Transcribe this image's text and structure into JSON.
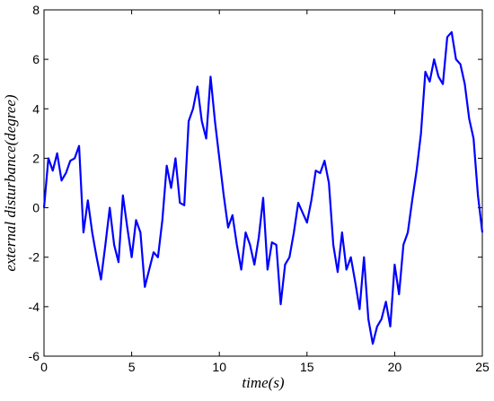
{
  "chart_data": {
    "type": "line",
    "xlabel": "time(s)",
    "ylabel": "external disturbance(degree)",
    "x": [
      0,
      0.25,
      0.5,
      0.75,
      1,
      1.25,
      1.5,
      1.75,
      2,
      2.25,
      2.5,
      2.75,
      3,
      3.25,
      3.5,
      3.75,
      4,
      4.25,
      4.5,
      4.75,
      5,
      5.25,
      5.5,
      5.75,
      6,
      6.25,
      6.5,
      6.75,
      7,
      7.25,
      7.5,
      7.75,
      8,
      8.25,
      8.5,
      8.75,
      9,
      9.25,
      9.5,
      9.75,
      10,
      10.25,
      10.5,
      10.75,
      11,
      11.25,
      11.5,
      11.75,
      12,
      12.25,
      12.5,
      12.75,
      13,
      13.25,
      13.5,
      13.75,
      14,
      14.25,
      14.5,
      14.75,
      15,
      15.25,
      15.5,
      15.75,
      16,
      16.25,
      16.5,
      16.75,
      17,
      17.25,
      17.5,
      17.75,
      18,
      18.25,
      18.5,
      18.75,
      19,
      19.25,
      19.5,
      19.75,
      20,
      20.25,
      20.5,
      20.75,
      21,
      21.25,
      21.5,
      21.75,
      22,
      22.25,
      22.5,
      22.75,
      23,
      23.25,
      23.5,
      23.75,
      24,
      24.25,
      24.5,
      24.75,
      25
    ],
    "series": [
      {
        "color": "#0000ff",
        "values": [
          0,
          2.0,
          1.5,
          2.2,
          1.1,
          1.4,
          1.9,
          2.0,
          2.5,
          -1.0,
          0.3,
          -1.0,
          -2.0,
          -2.9,
          -1.5,
          0.0,
          -1.5,
          -2.2,
          0.5,
          -0.8,
          -2.0,
          -0.5,
          -1.0,
          -3.2,
          -2.5,
          -1.8,
          -2.0,
          -0.5,
          1.7,
          0.8,
          2.0,
          0.2,
          0.1,
          3.5,
          4.0,
          4.9,
          3.5,
          2.8,
          5.3,
          3.5,
          2.0,
          0.5,
          -0.8,
          -0.3,
          -1.5,
          -2.5,
          -1.0,
          -1.5,
          -2.3,
          -1.2,
          0.4,
          -2.5,
          -1.4,
          -1.5,
          -3.9,
          -2.3,
          -2.0,
          -1.0,
          0.2,
          -0.2,
          -0.6,
          0.3,
          1.5,
          1.4,
          1.9,
          1.0,
          -1.5,
          -2.6,
          -1.0,
          -2.5,
          -2.0,
          -3.0,
          -4.1,
          -2.0,
          -4.5,
          -5.5,
          -4.8,
          -4.5,
          -3.8,
          -4.8,
          -2.3,
          -3.5,
          -1.5,
          -1.0,
          0.3,
          1.5,
          3.0,
          5.5,
          5.1,
          6.0,
          5.3,
          5.0,
          6.9,
          7.1,
          6.0,
          5.8,
          5.0,
          3.6,
          2.8,
          0.5,
          -1.0
        ]
      }
    ],
    "xlim": [
      0,
      25
    ],
    "xticks": [
      0,
      5,
      10,
      15,
      20,
      25
    ],
    "ylim": [
      -6,
      8
    ],
    "yticks": [
      -6,
      -4,
      -2,
      0,
      2,
      4,
      6,
      8
    ]
  }
}
